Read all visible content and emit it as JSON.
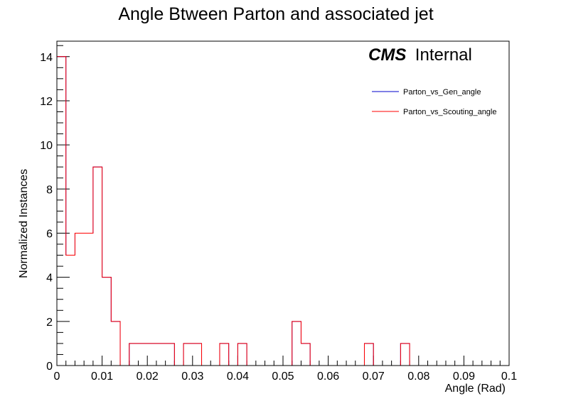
{
  "chart_data": {
    "type": "histogram",
    "title": "Angle Btween Parton and associated jet",
    "xlabel": "Angle (Rad)",
    "ylabel": "Normalized Instances",
    "xlim": [
      0,
      0.1
    ],
    "ylim": [
      0,
      14.7
    ],
    "grid": false,
    "x_ticks": [
      0,
      0.01,
      0.02,
      0.03,
      0.04,
      0.05,
      0.06,
      0.07,
      0.08,
      0.09,
      0.1
    ],
    "x_tick_labels": [
      "0",
      "0.01",
      "0.02",
      "0.03",
      "0.04",
      "0.05",
      "0.06",
      "0.07",
      "0.08",
      "0.09",
      "0.1"
    ],
    "y_ticks": [
      0,
      2,
      4,
      6,
      8,
      10,
      12,
      14
    ],
    "y_tick_labels": [
      "0",
      "2",
      "4",
      "6",
      "8",
      "10",
      "12",
      "14"
    ],
    "bin_edges": [
      0,
      0.002,
      0.004,
      0.006,
      0.008,
      0.01,
      0.012,
      0.014,
      0.016,
      0.018,
      0.02,
      0.022,
      0.024,
      0.026,
      0.028,
      0.03,
      0.032,
      0.034,
      0.036,
      0.038,
      0.04,
      0.042,
      0.044,
      0.046,
      0.048,
      0.05,
      0.052,
      0.054,
      0.056,
      0.058,
      0.06,
      0.062,
      0.064,
      0.066,
      0.068,
      0.07,
      0.072,
      0.074,
      0.076,
      0.078,
      0.08,
      0.082,
      0.084,
      0.086,
      0.088,
      0.09,
      0.092,
      0.094,
      0.096,
      0.098,
      0.1
    ],
    "series": [
      {
        "name": "Parton_vs_Gen_angle",
        "color": "#0000cc",
        "values": [
          14,
          5,
          6,
          6,
          9,
          4,
          2,
          0,
          1,
          1,
          1,
          1,
          1,
          0,
          1,
          1,
          0,
          0,
          1,
          0,
          1,
          0,
          0,
          0,
          0,
          0,
          2,
          1,
          0,
          0,
          0,
          0,
          0,
          0,
          1,
          0,
          0,
          0,
          1,
          0,
          0,
          0,
          0,
          0,
          0,
          0,
          0,
          0,
          0,
          0
        ]
      },
      {
        "name": "Parton_vs_Scouting_angle",
        "color": "#ff0000",
        "values": [
          14,
          5,
          6,
          6,
          9,
          4,
          2,
          0,
          1,
          1,
          1,
          1,
          1,
          0,
          1,
          1,
          0,
          0,
          1,
          0,
          1,
          0,
          0,
          0,
          0,
          0,
          2,
          1,
          0,
          0,
          0,
          0,
          0,
          0,
          1,
          0,
          0,
          0,
          1,
          0,
          0,
          0,
          0,
          0,
          0,
          0,
          0,
          0,
          0,
          0
        ]
      }
    ],
    "legend_position": "top-right",
    "annotation": {
      "bold": "CMS",
      "normal": "Internal"
    }
  }
}
